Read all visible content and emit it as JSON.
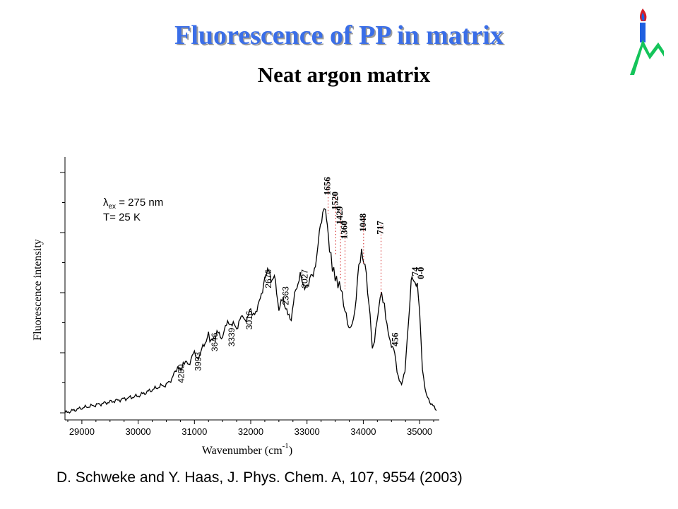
{
  "slide": {
    "title": "Fluorescence of PP in matrix",
    "subtitle": "Neat argon matrix",
    "citation": "D. Schweke and Y. Haas, J. Phys. Chem. A, 107, 9554 (2003)"
  },
  "logo": {
    "icon": "jerusalem-institute-logo",
    "colors": [
      "#1f5fe0",
      "#d21f2a",
      "#14c45a"
    ]
  },
  "colors": {
    "title": "#3a6ee8",
    "spectrum": "#000000",
    "leader_line": "#d11a1a"
  },
  "chart_data": {
    "type": "line",
    "xlabel": "Wavenumber (cm",
    "xlabel_sup": "-1",
    "xlabel_close": ")",
    "ylabel": "Fluorescence intensity",
    "xlim": [
      28700,
      35350
    ],
    "ylim": [
      0,
      1
    ],
    "x_ticks": [
      29000,
      30000,
      31000,
      32000,
      33000,
      34000,
      35000
    ],
    "grid": false,
    "conditions": {
      "lambda_symbol": "λ",
      "lambda_sub": "ex",
      "lambda_rest": " = 275 nm",
      "temperature": "T= 25 K"
    },
    "series": [
      {
        "points": [
          [
            28700,
            0.0
          ],
          [
            29000,
            0.02
          ],
          [
            29300,
            0.035
          ],
          [
            29600,
            0.05
          ],
          [
            29900,
            0.065
          ],
          [
            30000,
            0.07
          ],
          [
            30200,
            0.09
          ],
          [
            30400,
            0.11
          ],
          [
            30500,
            0.115
          ],
          [
            30600,
            0.14
          ],
          [
            30700,
            0.19
          ],
          [
            30760,
            0.17
          ],
          [
            30800,
            0.21
          ],
          [
            30900,
            0.2
          ],
          [
            31000,
            0.25
          ],
          [
            31050,
            0.22
          ],
          [
            31150,
            0.27
          ],
          [
            31250,
            0.32
          ],
          [
            31300,
            0.29
          ],
          [
            31400,
            0.33
          ],
          [
            31500,
            0.31
          ],
          [
            31550,
            0.36
          ],
          [
            31650,
            0.37
          ],
          [
            31750,
            0.35
          ],
          [
            31850,
            0.4
          ],
          [
            31900,
            0.38
          ],
          [
            32000,
            0.42
          ],
          [
            32050,
            0.4
          ],
          [
            32150,
            0.45
          ],
          [
            32250,
            0.55
          ],
          [
            32300,
            0.59
          ],
          [
            32360,
            0.55
          ],
          [
            32420,
            0.56
          ],
          [
            32500,
            0.43
          ],
          [
            32580,
            0.47
          ],
          [
            32660,
            0.4
          ],
          [
            32720,
            0.39
          ],
          [
            32800,
            0.51
          ],
          [
            32880,
            0.56
          ],
          [
            32980,
            0.51
          ],
          [
            33050,
            0.55
          ],
          [
            33150,
            0.6
          ],
          [
            33200,
            0.7
          ],
          [
            33280,
            0.83
          ],
          [
            33330,
            0.84
          ],
          [
            33360,
            0.78
          ],
          [
            33400,
            0.68
          ],
          [
            33450,
            0.6
          ],
          [
            33500,
            0.56
          ],
          [
            33550,
            0.53
          ],
          [
            33600,
            0.52
          ],
          [
            33650,
            0.45
          ],
          [
            33720,
            0.37
          ],
          [
            33780,
            0.34
          ],
          [
            33850,
            0.42
          ],
          [
            33920,
            0.6
          ],
          [
            33970,
            0.66
          ],
          [
            34030,
            0.61
          ],
          [
            34100,
            0.45
          ],
          [
            34160,
            0.27
          ],
          [
            34200,
            0.3
          ],
          [
            34260,
            0.4
          ],
          [
            34300,
            0.49
          ],
          [
            34350,
            0.47
          ],
          [
            34400,
            0.4
          ],
          [
            34460,
            0.3
          ],
          [
            34500,
            0.28
          ],
          [
            34540,
            0.27
          ],
          [
            34600,
            0.17
          ],
          [
            34680,
            0.11
          ],
          [
            34740,
            0.18
          ],
          [
            34800,
            0.36
          ],
          [
            34850,
            0.54
          ],
          [
            34880,
            0.55
          ],
          [
            34920,
            0.52
          ],
          [
            34960,
            0.54
          ],
          [
            35000,
            0.42
          ],
          [
            35050,
            0.18
          ],
          [
            35120,
            0.07
          ],
          [
            35200,
            0.04
          ],
          [
            35300,
            0.01
          ]
        ]
      }
    ],
    "annotations": [
      {
        "label": "1656",
        "x": 33300,
        "y_peak": 0.83,
        "y_text": 0.97,
        "style": "bold",
        "leader": true
      },
      {
        "label": "1520",
        "x": 33435,
        "y_peak": 0.66,
        "y_text": 0.91,
        "style": "bold",
        "leader": true
      },
      {
        "label": "1429",
        "x": 33520,
        "y_peak": 0.56,
        "y_text": 0.85,
        "style": "bold",
        "leader": true
      },
      {
        "label": "1360",
        "x": 33600,
        "y_peak": 0.52,
        "y_text": 0.79,
        "style": "bold",
        "leader": true
      },
      {
        "label": "1048",
        "x": 33930,
        "y_peak": 0.62,
        "y_text": 0.82,
        "style": "bold",
        "leader": true
      },
      {
        "label": "717",
        "x": 34240,
        "y_peak": 0.49,
        "y_text": 0.79,
        "style": "bold",
        "leader": true
      },
      {
        "label": "456",
        "x": 34500,
        "y_peak": 0.28,
        "y_text": 0.33,
        "style": "bold",
        "leader": false
      },
      {
        "label": "74",
        "x": 34860,
        "y_peak": 0.55,
        "y_text": 0.6,
        "style": "bold",
        "leader": false
      },
      {
        "label": "0-0",
        "x": 34960,
        "y_peak": 0.55,
        "y_text": 0.6,
        "style": "bold",
        "leader": false
      },
      {
        "label": "2676",
        "x": 32250,
        "y_peak": 0.55,
        "y_text": 0.59,
        "style": "normal",
        "leader": false
      },
      {
        "label": "2363",
        "x": 32560,
        "y_peak": 0.47,
        "y_text": 0.52,
        "style": "normal",
        "leader": false
      },
      {
        "label": "2027",
        "x": 32900,
        "y_peak": 0.56,
        "y_text": 0.59,
        "style": "normal",
        "leader": false
      },
      {
        "label": "3016",
        "x": 31910,
        "y_peak": 0.4,
        "y_text": 0.42,
        "style": "normal",
        "leader": false
      },
      {
        "label": "3339",
        "x": 31600,
        "y_peak": 0.36,
        "y_text": 0.35,
        "style": "normal",
        "leader": false
      },
      {
        "label": "3646",
        "x": 31300,
        "y_peak": 0.32,
        "y_text": 0.33,
        "style": "normal",
        "leader": false
      },
      {
        "label": "3993",
        "x": 31000,
        "y_peak": 0.25,
        "y_text": 0.25,
        "style": "normal",
        "leader": false
      },
      {
        "label": "4280",
        "x": 30700,
        "y_peak": 0.19,
        "y_text": 0.2,
        "style": "normal",
        "leader": false
      }
    ]
  }
}
